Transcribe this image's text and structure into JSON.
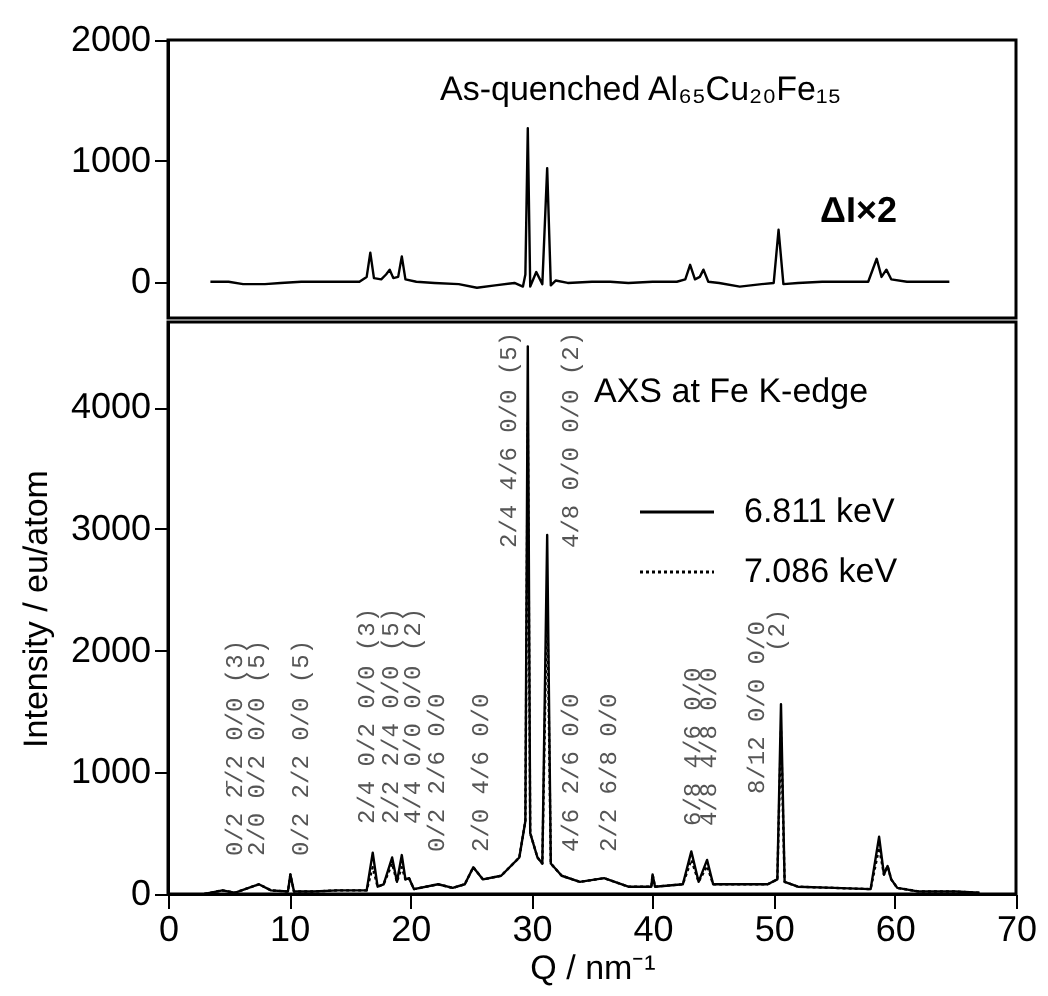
{
  "chart_data": [
    {
      "type": "line",
      "xlim": [
        0,
        70
      ],
      "ylim": [
        -300,
        2000
      ],
      "yticks": [
        0,
        1000,
        2000
      ],
      "tick_labels": "y",
      "grid": false,
      "series": [
        {
          "color": "#000000",
          "line_style": "solid",
          "x": [
            3.5,
            5,
            6.2,
            8,
            9.3,
            11,
            12.5,
            14,
            15.8,
            16.4,
            16.7,
            17.0,
            17.6,
            18.0,
            18.3,
            18.6,
            19.0,
            19.3,
            19.6,
            20.5,
            22,
            24,
            25.5,
            27,
            28.6,
            29.3,
            29.5,
            29.7,
            29.9,
            30.4,
            30.9,
            31.3,
            31.6,
            32.0,
            33,
            35,
            36.5,
            38,
            40,
            42,
            42.7,
            43.1,
            43.5,
            43.9,
            44.2,
            44.6,
            45.5,
            47.2,
            49,
            50.0,
            50.4,
            50.8,
            52,
            54,
            56,
            57.8,
            58.5,
            58.9,
            59.3,
            59.7,
            61,
            63,
            64.5
          ],
          "values": [
            0,
            0,
            -20,
            -20,
            -10,
            0,
            0,
            0,
            0,
            40,
            240,
            30,
            20,
            60,
            100,
            30,
            40,
            210,
            20,
            0,
            -10,
            -20,
            -50,
            -30,
            -10,
            -40,
            60,
            1270,
            -40,
            80,
            -20,
            940,
            -30,
            10,
            -10,
            0,
            0,
            -10,
            0,
            0,
            20,
            140,
            20,
            40,
            100,
            0,
            -10,
            -40,
            -20,
            -10,
            430,
            -20,
            -10,
            0,
            0,
            0,
            190,
            40,
            100,
            20,
            0,
            0,
            0
          ]
        }
      ],
      "annotations": [
        "As-quenched Al₆₅Cu₂₀Fe₁₅",
        "ΔI×2"
      ]
    },
    {
      "type": "line",
      "xlim": [
        0,
        70
      ],
      "xticks": [
        0,
        10,
        20,
        30,
        40,
        50,
        60,
        70
      ],
      "ylim": [
        0,
        4700
      ],
      "yticks": [
        0,
        1000,
        2000,
        3000,
        4000
      ],
      "grid": false,
      "xlabel": "Q / nm⁻¹",
      "ylabel": "Intensity / eu/atom",
      "legend_title": "AXS at Fe K-edge",
      "legend": "right",
      "series": [
        {
          "name": "6.811 keV",
          "color": "#000000",
          "line_style": "solid",
          "x": [
            3,
            4.5,
            5.5,
            7.5,
            8.5,
            9.9,
            10.1,
            10.4,
            12,
            14,
            16.4,
            16.9,
            17.3,
            17.8,
            18.5,
            18.9,
            19.3,
            19.6,
            19.9,
            20.3,
            22.3,
            23.5,
            24.5,
            25.2,
            26,
            27.5,
            29,
            29.5,
            29.7,
            29.9,
            30.2,
            30.5,
            30.9,
            31.3,
            31.6,
            32.5,
            34,
            36,
            38,
            39.9,
            40.0,
            40.2,
            42.5,
            43.2,
            43.8,
            44.5,
            45,
            47.5,
            49.5,
            50.3,
            50.6,
            50.9,
            52,
            55,
            58,
            58.7,
            59.1,
            59.4,
            59.7,
            60.2,
            62,
            65,
            67
          ],
          "values": [
            0,
            30,
            10,
            80,
            30,
            20,
            160,
            20,
            20,
            30,
            30,
            340,
            60,
            80,
            300,
            100,
            320,
            120,
            130,
            40,
            80,
            50,
            80,
            220,
            120,
            150,
            300,
            600,
            4500,
            500,
            400,
            300,
            250,
            2950,
            250,
            150,
            100,
            130,
            60,
            60,
            160,
            60,
            80,
            350,
            100,
            280,
            80,
            80,
            80,
            120,
            1560,
            100,
            60,
            50,
            40,
            470,
            160,
            230,
            120,
            50,
            20,
            20,
            10
          ]
        },
        {
          "name": "7.086 keV",
          "color": "#000000",
          "line_style": "dotted",
          "x": [
            3,
            4.5,
            5.5,
            7.5,
            8.5,
            9.9,
            10.1,
            10.4,
            12,
            14,
            16.4,
            16.9,
            17.3,
            17.8,
            18.5,
            18.9,
            19.3,
            19.6,
            19.9,
            20.3,
            22.3,
            23.5,
            24.5,
            25.2,
            26,
            27.5,
            29,
            29.5,
            29.7,
            29.9,
            30.2,
            30.5,
            30.9,
            31.3,
            31.6,
            32.5,
            34,
            36,
            38,
            39.9,
            40.0,
            40.2,
            42.5,
            43.2,
            43.8,
            44.5,
            45,
            47.5,
            49.5,
            50.3,
            50.6,
            50.9,
            52,
            55,
            58,
            58.7,
            59.1,
            59.4,
            59.7,
            60.2,
            62,
            65,
            67
          ],
          "values": [
            0,
            30,
            10,
            80,
            30,
            20,
            160,
            20,
            20,
            30,
            30,
            220,
            60,
            80,
            250,
            100,
            220,
            120,
            130,
            40,
            80,
            50,
            80,
            220,
            120,
            150,
            300,
            600,
            3870,
            500,
            400,
            300,
            250,
            2480,
            250,
            150,
            100,
            130,
            60,
            60,
            160,
            60,
            80,
            280,
            100,
            230,
            80,
            80,
            80,
            120,
            1350,
            100,
            60,
            50,
            40,
            380,
            160,
            230,
            120,
            50,
            20,
            20,
            10
          ]
        }
      ],
      "annotations": [
        "0/2 2̄/2 0/0 (3)",
        "2/0 0/2 0/0 (5)",
        "0/2 2/2 0/0 (5)",
        "2/4 0/2 0/0 (3)",
        "2/2 2/4 0/0 (5)",
        "4/4 0/0 0/0 (2)",
        "0/2 2/6 0/0",
        "2/0 4/6 0/0",
        "2/4 4/6 0/0 (5)",
        "4/8 0/0 0/0 (2)",
        "4/6 2/6 0/0",
        "2/2 6/8 0/0",
        "6/8 4/6 0/0",
        "4/8 4/8 0/0",
        "8/12 0/0 0/0",
        "(2)"
      ]
    }
  ]
}
